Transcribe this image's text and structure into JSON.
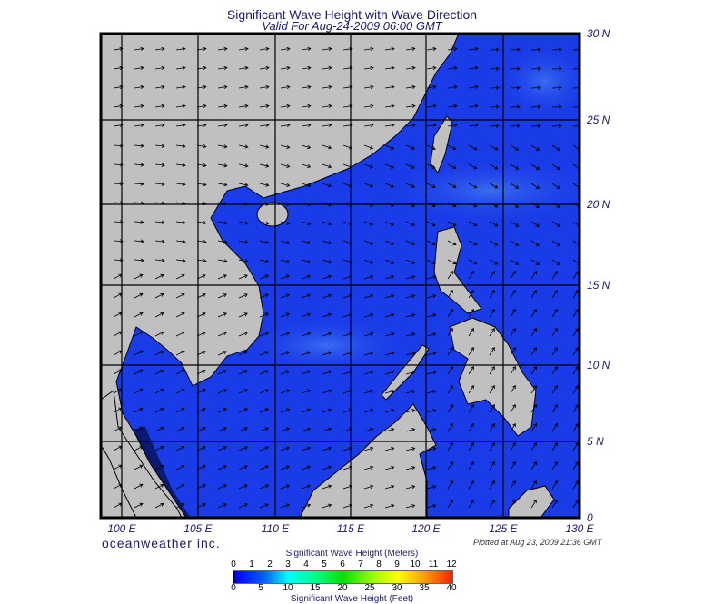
{
  "title": "Significant Wave Height with Wave Direction",
  "subtitle": "Valid For Aug-24-2009 06:00 GMT",
  "map": {
    "lon_labels": [
      "100 E",
      "105 E",
      "110 E",
      "115 E",
      "120 E",
      "125 E",
      "130 E"
    ],
    "lat_labels": [
      "30 N",
      "25 N",
      "20 N",
      "15 N",
      "10 N",
      "5 N",
      "0"
    ],
    "colors": {
      "ocean": "#1a3ce8",
      "land": "#c0c0c0",
      "grid": "#000000"
    }
  },
  "brand": "oceanweather inc.",
  "plotted": "Plotted at Aug 23, 2009 21:36 GMT",
  "colorbar": {
    "meters_label": "Significant Wave Height (Meters)",
    "meters_ticks": [
      "0",
      "1",
      "2",
      "3",
      "4",
      "5",
      "6",
      "7",
      "8",
      "9",
      "10",
      "11",
      "12"
    ],
    "feet_label": "Significant Wave Height (Feet)",
    "feet_ticks": [
      "0",
      "5",
      "10",
      "15",
      "20",
      "25",
      "30",
      "35",
      "40"
    ]
  }
}
